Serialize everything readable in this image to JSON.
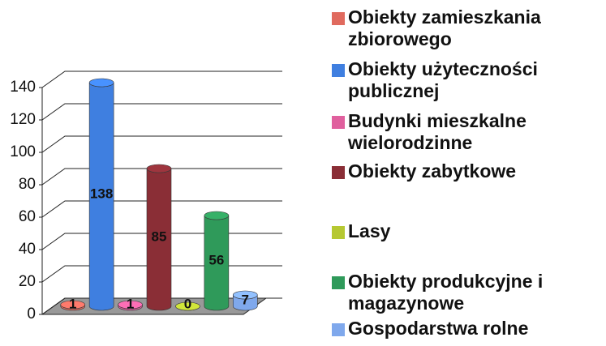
{
  "chart_data": {
    "type": "bar3d",
    "categories": [
      "Obiekty zamieszkania zbiorowego",
      "Obiekty użyteczności publicznej",
      "Budynki mieszkalne wielorodzinne",
      "Obiekty zabytkowe",
      "Lasy",
      "Obiekty produkcyjne i magazynowe",
      "Gospodarstwa rolne"
    ],
    "values": [
      1,
      138,
      1,
      85,
      0,
      56,
      7
    ],
    "colors": [
      "#e06a5e",
      "#3f7fe0",
      "#e0609e",
      "#8a2e36",
      "#b6c832",
      "#2f9a5a",
      "#7fa8ec"
    ],
    "ylim": [
      0,
      140
    ],
    "yticks": [
      0,
      20,
      40,
      60,
      80,
      100,
      120,
      140
    ],
    "grid": true,
    "legend": "right"
  }
}
